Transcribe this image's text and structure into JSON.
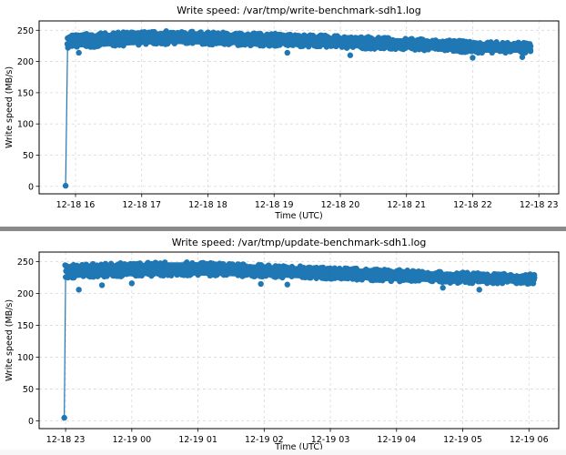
{
  "colors": {
    "series": "#1f77b4",
    "grid": "#d9d9d9",
    "axis": "#000000",
    "separator": "#8a8a8a"
  },
  "chart_data": [
    {
      "type": "line",
      "title": "Write speed: /var/tmp/write-benchmark-sdh1.log",
      "xlabel": "Time (UTC)",
      "ylabel": "Write speed (MB/s)",
      "ylim": [
        -12,
        265
      ],
      "yticks": [
        0,
        50,
        100,
        150,
        200,
        250
      ],
      "xticks": [
        "12-18 16",
        "12-18 17",
        "12-18 18",
        "12-18 19",
        "12-18 20",
        "12-18 21",
        "12-18 22",
        "12-18 23"
      ],
      "xlim_hours": [
        15.45,
        23.3
      ],
      "xtick_hours": [
        16,
        17,
        18,
        19,
        20,
        21,
        22,
        23
      ],
      "grid": true,
      "marker": "circle",
      "series": [
        {
          "name": "write-benchmark-sdh1",
          "start": {
            "hour": 15.85,
            "value": 1
          },
          "band": [
            {
              "hour": 15.88,
              "low": 220,
              "high": 245
            },
            {
              "hour": 16.5,
              "low": 222,
              "high": 248
            },
            {
              "hour": 17.0,
              "low": 225,
              "high": 250
            },
            {
              "hour": 17.5,
              "low": 226,
              "high": 251
            },
            {
              "hour": 18.0,
              "low": 225,
              "high": 249
            },
            {
              "hour": 18.5,
              "low": 224,
              "high": 248
            },
            {
              "hour": 19.0,
              "low": 223,
              "high": 247
            },
            {
              "hour": 19.5,
              "low": 222,
              "high": 245
            },
            {
              "hour": 20.0,
              "low": 220,
              "high": 243
            },
            {
              "hour": 20.5,
              "low": 218,
              "high": 241
            },
            {
              "hour": 21.0,
              "low": 217,
              "high": 239
            },
            {
              "hour": 21.5,
              "low": 215,
              "high": 237
            },
            {
              "hour": 22.0,
              "low": 212,
              "high": 234
            },
            {
              "hour": 22.5,
              "low": 212,
              "high": 233
            },
            {
              "hour": 22.9,
              "low": 212,
              "high": 232
            }
          ],
          "outliers": [
            {
              "hour": 16.05,
              "value": 214
            },
            {
              "hour": 19.2,
              "value": 214
            },
            {
              "hour": 20.15,
              "value": 210
            },
            {
              "hour": 22.0,
              "value": 206
            },
            {
              "hour": 22.75,
              "value": 207
            }
          ]
        }
      ]
    },
    {
      "type": "line",
      "title": "Write speed: /var/tmp/update-benchmark-sdh1.log",
      "xlabel": "Time (UTC)",
      "ylabel": "Write speed (MB/s)",
      "ylim": [
        -12,
        265
      ],
      "yticks": [
        0,
        50,
        100,
        150,
        200,
        250
      ],
      "xticks": [
        "12-18 23",
        "12-19 00",
        "12-19 01",
        "12-19 02",
        "12-19 03",
        "12-19 04",
        "12-19 05",
        "12-19 06"
      ],
      "xlim_hours": [
        22.6,
        30.45
      ],
      "xtick_hours": [
        23,
        24,
        25,
        26,
        27,
        28,
        29,
        30
      ],
      "grid": true,
      "marker": "circle",
      "series": [
        {
          "name": "update-benchmark-sdh1",
          "start": {
            "hour": 22.98,
            "value": 5
          },
          "band": [
            {
              "hour": 23.0,
              "low": 222,
              "high": 247
            },
            {
              "hour": 23.5,
              "low": 224,
              "high": 249
            },
            {
              "hour": 24.0,
              "low": 225,
              "high": 250
            },
            {
              "hour": 24.5,
              "low": 226,
              "high": 251
            },
            {
              "hour": 25.0,
              "low": 226,
              "high": 251
            },
            {
              "hour": 25.5,
              "low": 225,
              "high": 249
            },
            {
              "hour": 26.0,
              "low": 224,
              "high": 247
            },
            {
              "hour": 26.5,
              "low": 222,
              "high": 245
            },
            {
              "hour": 27.0,
              "low": 221,
              "high": 243
            },
            {
              "hour": 27.5,
              "low": 219,
              "high": 241
            },
            {
              "hour": 28.0,
              "low": 217,
              "high": 239
            },
            {
              "hour": 28.5,
              "low": 216,
              "high": 237
            },
            {
              "hour": 29.0,
              "low": 214,
              "high": 235
            },
            {
              "hour": 29.5,
              "low": 214,
              "high": 233
            },
            {
              "hour": 30.1,
              "low": 213,
              "high": 232
            }
          ],
          "outliers": [
            {
              "hour": 23.2,
              "value": 206
            },
            {
              "hour": 23.55,
              "value": 213
            },
            {
              "hour": 24.0,
              "value": 216
            },
            {
              "hour": 25.95,
              "value": 215
            },
            {
              "hour": 26.35,
              "value": 214
            },
            {
              "hour": 28.7,
              "value": 209
            },
            {
              "hour": 29.25,
              "value": 206
            }
          ]
        }
      ]
    }
  ]
}
